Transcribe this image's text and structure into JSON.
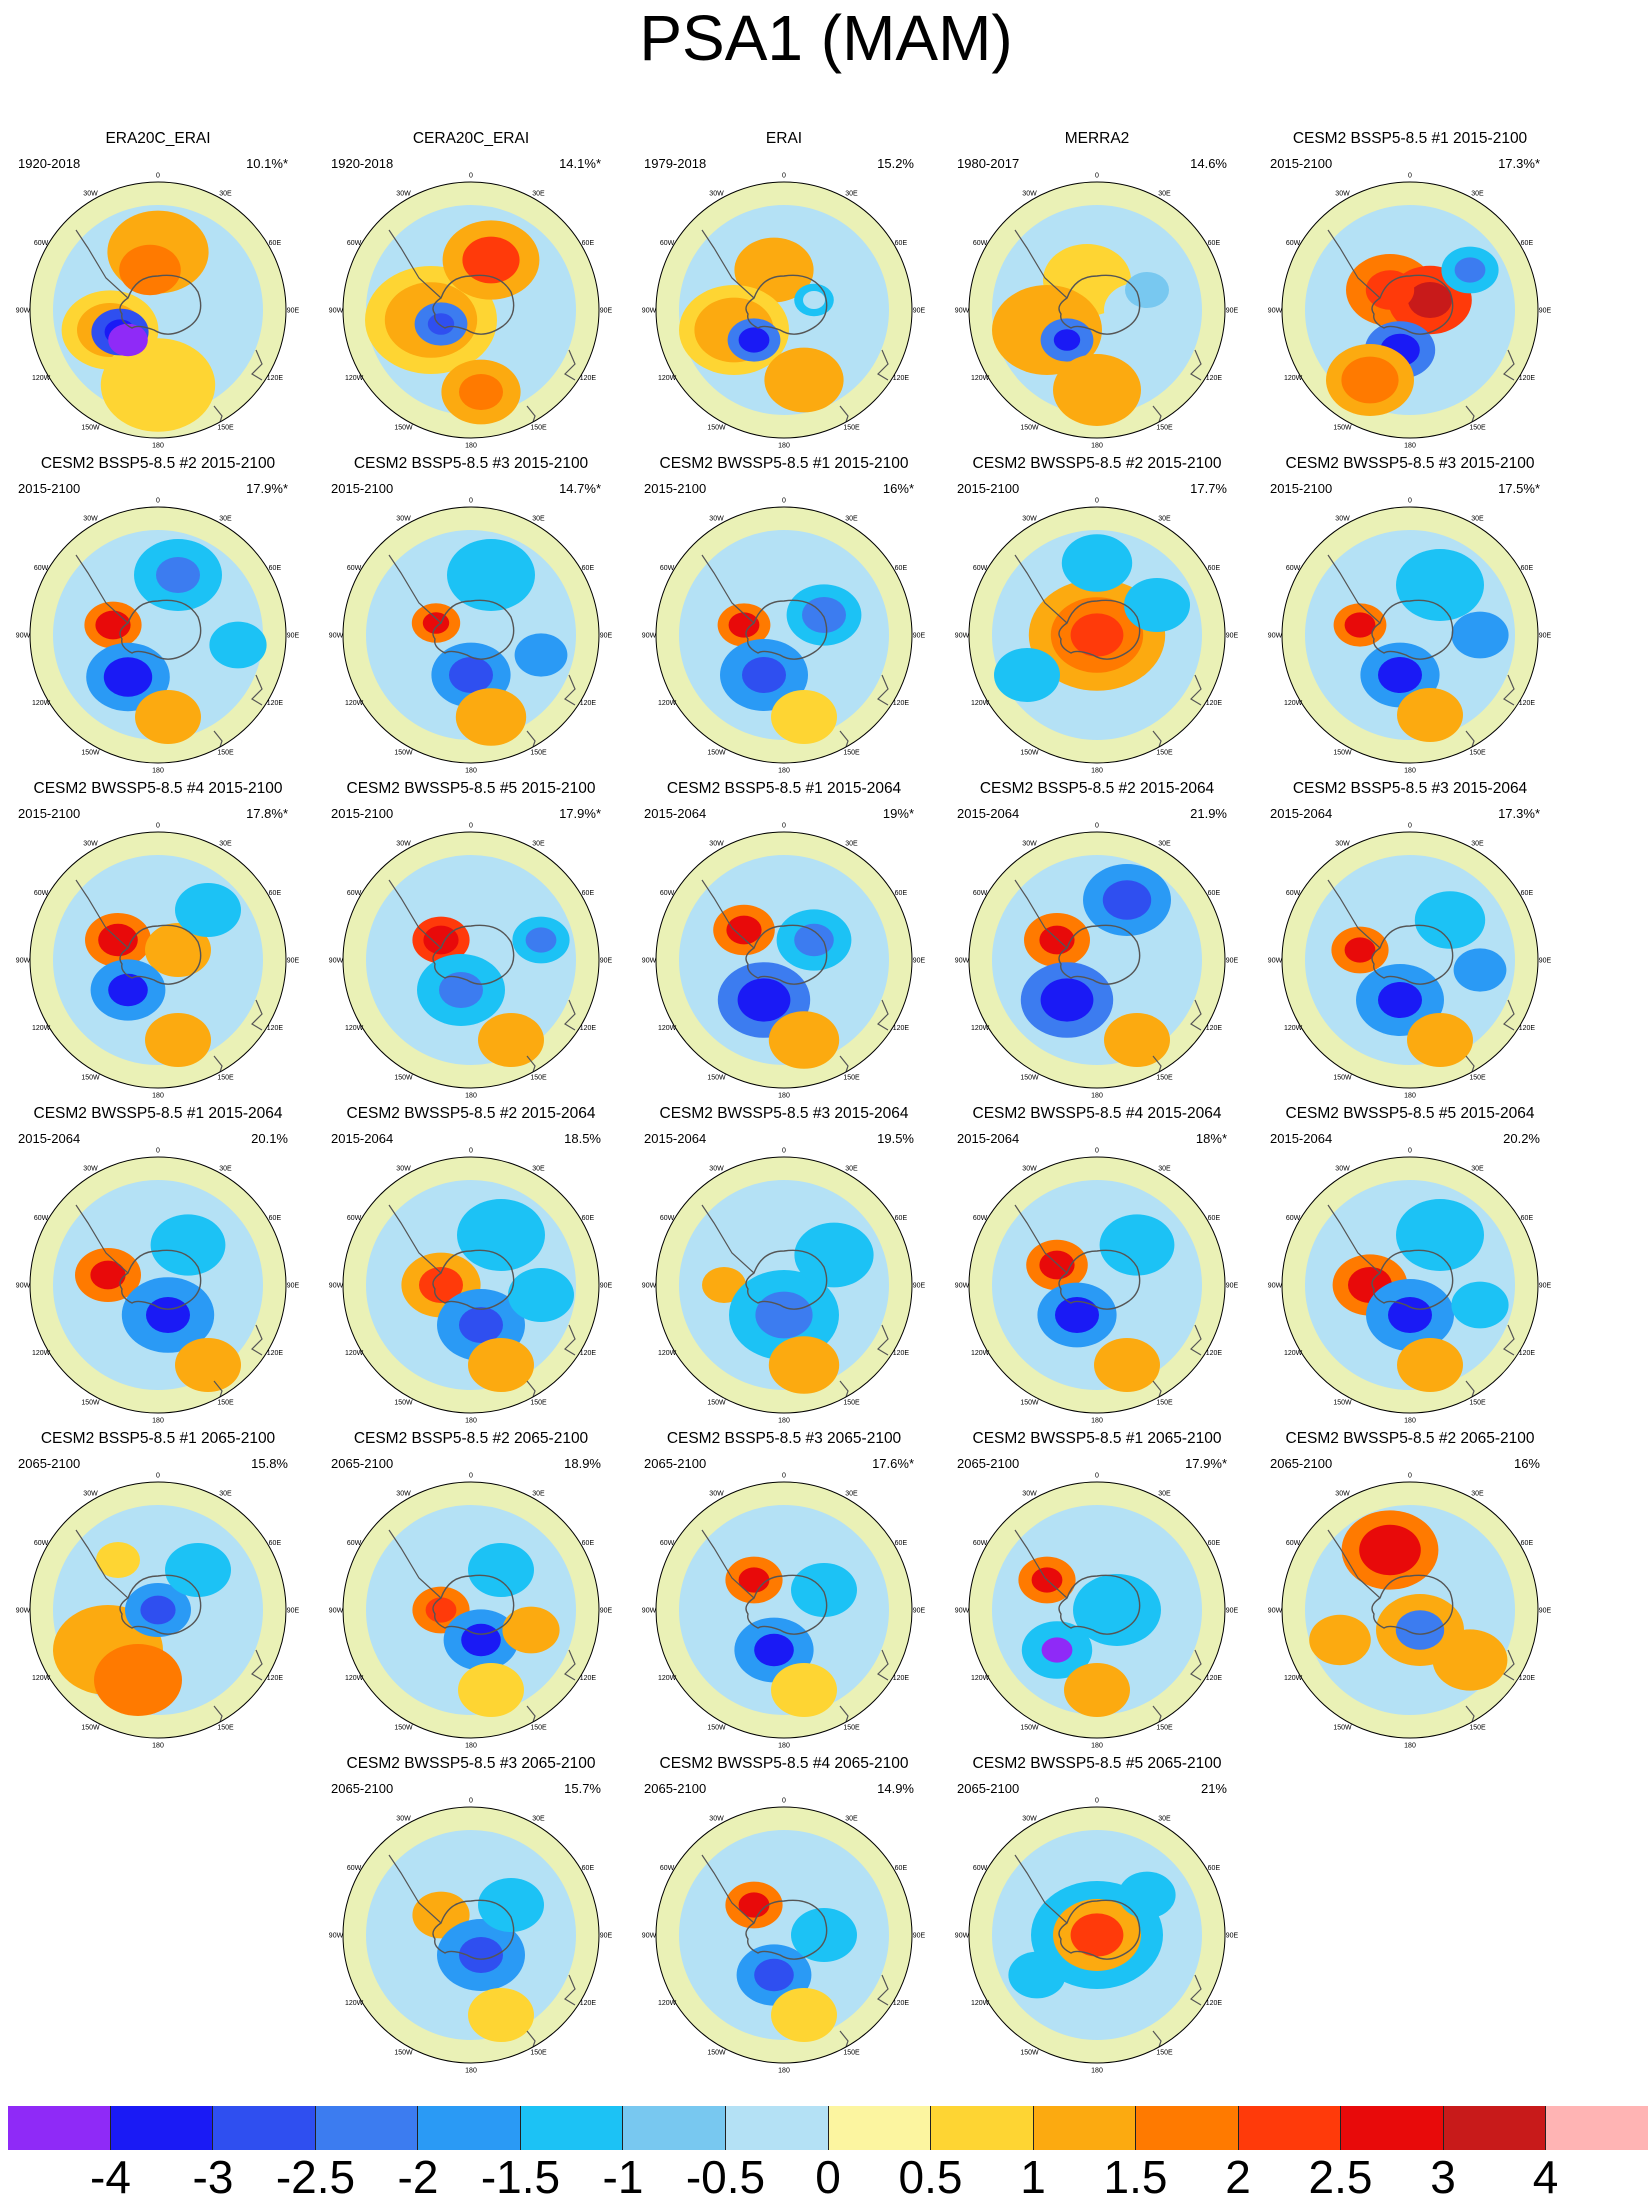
{
  "title": "PSA1 (MAM)",
  "longitude_labels": [
    "0",
    "30E",
    "60E",
    "90E",
    "120E",
    "150E",
    "180",
    "150W",
    "120W",
    "90W",
    "60W",
    "30W"
  ],
  "panels": [
    {
      "title": "ERA20C_ERAI",
      "period": "1920-2018",
      "pct": "10.1%*"
    },
    {
      "title": "CERA20C_ERAI",
      "period": "1920-2018",
      "pct": "14.1%*"
    },
    {
      "title": "ERAI",
      "period": "1979-2018",
      "pct": "15.2%"
    },
    {
      "title": "MERRA2",
      "period": "1980-2017",
      "pct": "14.6%"
    },
    {
      "title": "CESM2 BSSP5-8.5 #1 2015-2100",
      "period": "2015-2100",
      "pct": "17.3%*"
    },
    {
      "title": "CESM2 BSSP5-8.5 #2 2015-2100",
      "period": "2015-2100",
      "pct": "17.9%*"
    },
    {
      "title": "CESM2 BSSP5-8.5 #3 2015-2100",
      "period": "2015-2100",
      "pct": "14.7%*"
    },
    {
      "title": "CESM2 BWSSP5-8.5 #1 2015-2100",
      "period": "2015-2100",
      "pct": "16%*"
    },
    {
      "title": "CESM2 BWSSP5-8.5 #2 2015-2100",
      "period": "2015-2100",
      "pct": "17.7%"
    },
    {
      "title": "CESM2 BWSSP5-8.5 #3 2015-2100",
      "period": "2015-2100",
      "pct": "17.5%*"
    },
    {
      "title": "CESM2 BWSSP5-8.5 #4 2015-2100",
      "period": "2015-2100",
      "pct": "17.8%*"
    },
    {
      "title": "CESM2 BWSSP5-8.5 #5 2015-2100",
      "period": "2015-2100",
      "pct": "17.9%*"
    },
    {
      "title": "CESM2 BSSP5-8.5 #1 2015-2064",
      "period": "2015-2064",
      "pct": "19%*"
    },
    {
      "title": "CESM2 BSSP5-8.5 #2 2015-2064",
      "period": "2015-2064",
      "pct": "21.9%"
    },
    {
      "title": "CESM2 BSSP5-8.5 #3 2015-2064",
      "period": "2015-2064",
      "pct": "17.3%*"
    },
    {
      "title": "CESM2 BWSSP5-8.5 #1 2015-2064",
      "period": "2015-2064",
      "pct": "20.1%"
    },
    {
      "title": "CESM2 BWSSP5-8.5 #2 2015-2064",
      "period": "2015-2064",
      "pct": "18.5%"
    },
    {
      "title": "CESM2 BWSSP5-8.5 #3 2015-2064",
      "period": "2015-2064",
      "pct": "19.5%"
    },
    {
      "title": "CESM2 BWSSP5-8.5 #4 2015-2064",
      "period": "2015-2064",
      "pct": "18%*"
    },
    {
      "title": "CESM2 BWSSP5-8.5 #5 2015-2064",
      "period": "2015-2064",
      "pct": "20.2%"
    },
    {
      "title": "CESM2 BSSP5-8.5 #1 2065-2100",
      "period": "2065-2100",
      "pct": "15.8%"
    },
    {
      "title": "CESM2 BSSP5-8.5 #2 2065-2100",
      "period": "2065-2100",
      "pct": "18.9%"
    },
    {
      "title": "CESM2 BSSP5-8.5 #3 2065-2100",
      "period": "2065-2100",
      "pct": "17.6%*"
    },
    {
      "title": "CESM2 BWSSP5-8.5 #1 2065-2100",
      "period": "2065-2100",
      "pct": "17.9%*"
    },
    {
      "title": "CESM2 BWSSP5-8.5 #2 2065-2100",
      "period": "2065-2100",
      "pct": "16%"
    },
    {
      "title": "CESM2 BWSSP5-8.5 #3 2065-2100",
      "period": "2065-2100",
      "pct": "15.7%"
    },
    {
      "title": "CESM2 BWSSP5-8.5 #4 2065-2100",
      "period": "2065-2100",
      "pct": "14.9%"
    },
    {
      "title": "CESM2 BWSSP5-8.5 #5 2065-2100",
      "period": "2065-2100",
      "pct": "21%"
    }
  ],
  "colorbar": {
    "colors": [
      "#8f2af7",
      "#1a1af5",
      "#2f4ff0",
      "#3c7cf0",
      "#2a9af5",
      "#1cc2f5",
      "#78c8f0",
      "#b4e1f5",
      "#fcf5a0",
      "#fed533",
      "#fcaa10",
      "#ff7a00",
      "#ff3a0a",
      "#e80a0a",
      "#c81a1a",
      "#ffb4b4"
    ],
    "labels": [
      "-4",
      "-3",
      "-2.5",
      "-2",
      "-1.5",
      "-1",
      "-0.5",
      "0",
      "0.5",
      "1",
      "1.5",
      "2",
      "2.5",
      "3",
      "4"
    ]
  }
}
